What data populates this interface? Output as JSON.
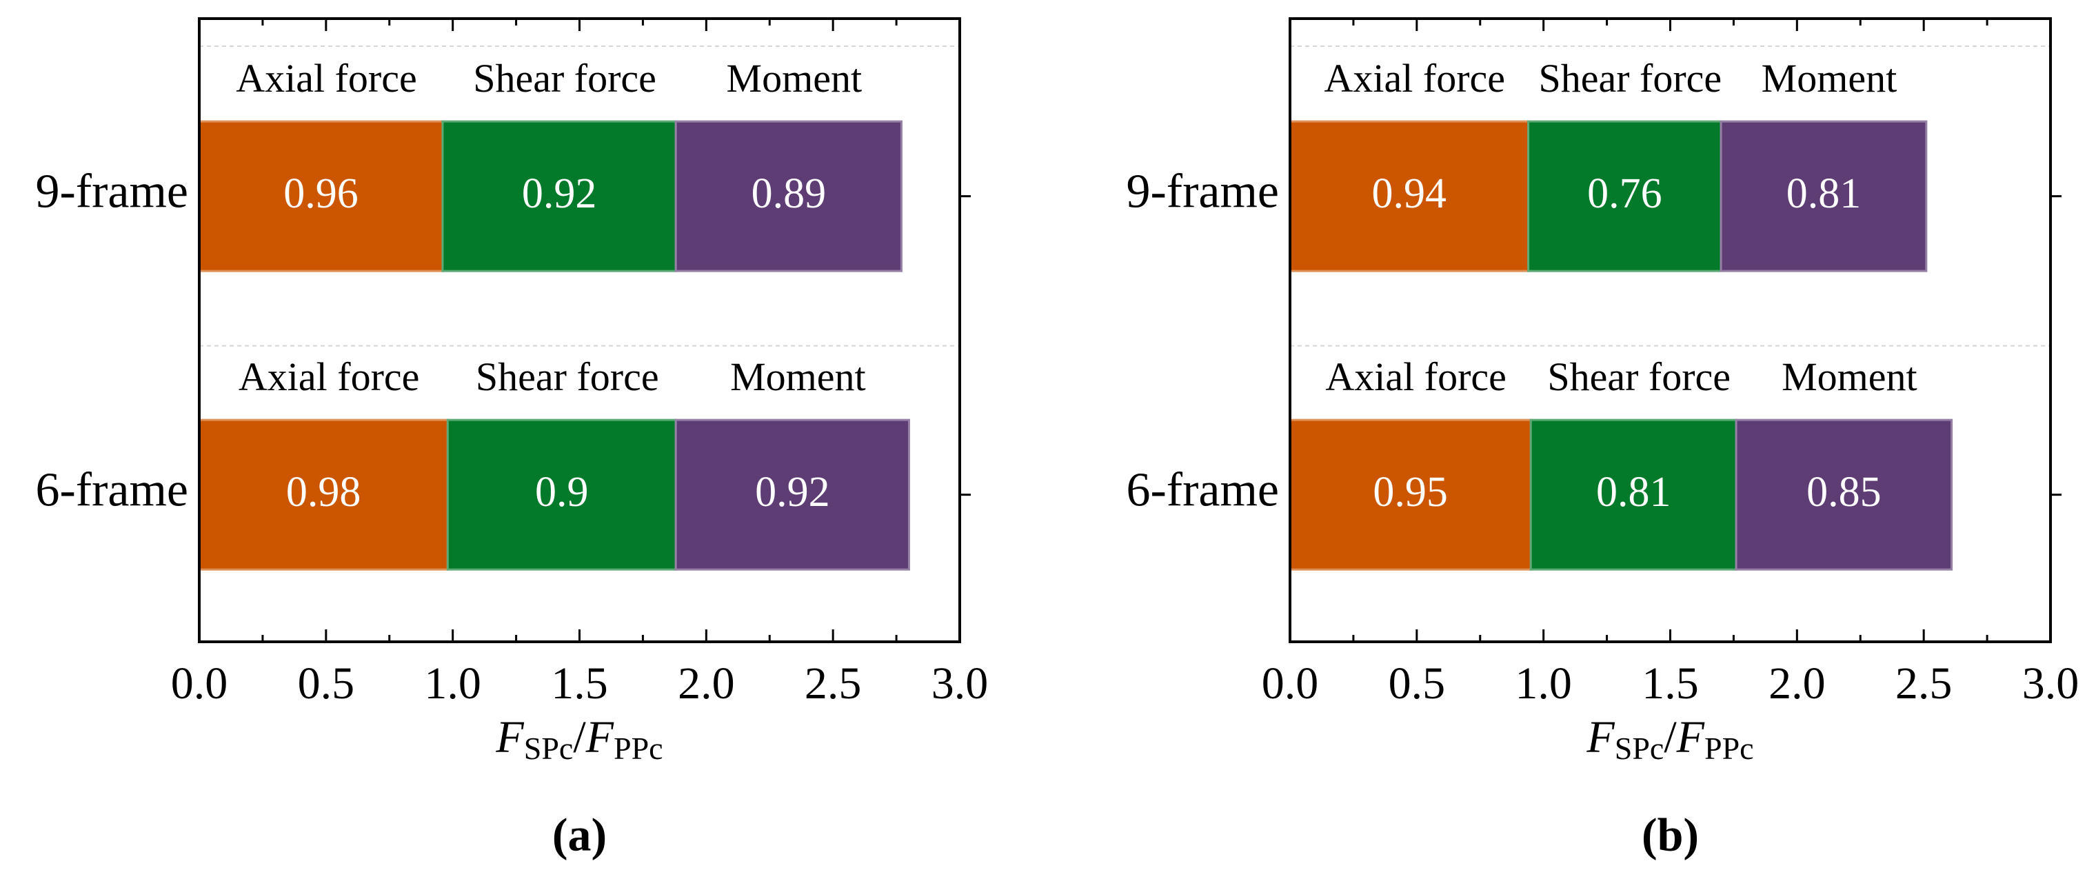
{
  "chart_data": [
    {
      "type": "bar",
      "orientation": "horizontal",
      "panel_label": "(a)",
      "categories": [
        "9-frame",
        "6-frame"
      ],
      "series": [
        {
          "name": "Axial force",
          "color": "#cc5500",
          "values": [
            0.96,
            0.98
          ]
        },
        {
          "name": "Shear force",
          "color": "#037a2a",
          "values": [
            0.92,
            0.9
          ]
        },
        {
          "name": "Moment",
          "color": "#5e3c74",
          "values": [
            0.89,
            0.92
          ]
        }
      ],
      "xlabel_parts": [
        "F",
        "SPc",
        "/",
        "F",
        "PPc"
      ],
      "xlim": [
        0,
        3
      ],
      "xticks": [
        {
          "value": 0,
          "label": "0.0"
        },
        {
          "value": 0.5,
          "label": "0.5"
        },
        {
          "value": 1,
          "label": "1.0"
        },
        {
          "value": 1.5,
          "label": "1.5"
        },
        {
          "value": 2,
          "label": "2.0"
        },
        {
          "value": 2.5,
          "label": "2.5"
        },
        {
          "value": 3,
          "label": "3.0"
        }
      ],
      "xminorticks": [
        0.25,
        0.75,
        1.25,
        1.75,
        2.25,
        2.75
      ]
    },
    {
      "type": "bar",
      "orientation": "horizontal",
      "panel_label": "(b)",
      "categories": [
        "9-frame",
        "6-frame"
      ],
      "series": [
        {
          "name": "Axial force",
          "color": "#cc5500",
          "values": [
            0.94,
            0.95
          ]
        },
        {
          "name": "Shear force",
          "color": "#037a2a",
          "values": [
            0.76,
            0.81
          ]
        },
        {
          "name": "Moment",
          "color": "#5e3c74",
          "values": [
            0.81,
            0.85
          ]
        }
      ],
      "xlabel_parts": [
        "F",
        "SPc",
        "/",
        "F",
        "PPc"
      ],
      "xlim": [
        0,
        3
      ],
      "xticks": [
        {
          "value": 0,
          "label": "0.0"
        },
        {
          "value": 0.5,
          "label": "0.5"
        },
        {
          "value": 1,
          "label": "1.0"
        },
        {
          "value": 1.5,
          "label": "1.5"
        },
        {
          "value": 2,
          "label": "2.0"
        },
        {
          "value": 2.5,
          "label": "2.5"
        },
        {
          "value": 3,
          "label": "3.0"
        }
      ],
      "xminorticks": [
        0.25,
        0.75,
        1.25,
        1.75,
        2.25,
        2.75
      ]
    }
  ]
}
